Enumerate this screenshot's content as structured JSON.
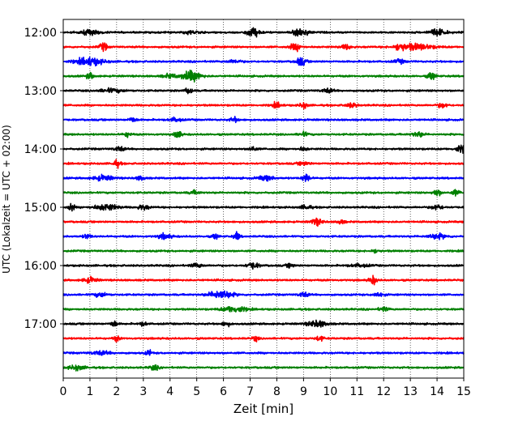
{
  "chart_data": {
    "type": "line",
    "xlabel": "Zeit  [min]",
    "ylabel": "UTC (Lokalzeit = UTC + 02:00)",
    "xlim": [
      0,
      15
    ],
    "x_ticks": [
      "0",
      "1",
      "2",
      "3",
      "4",
      "5",
      "6",
      "7",
      "8",
      "9",
      "10",
      "11",
      "12",
      "13",
      "14",
      "15"
    ],
    "y_ticks": [
      {
        "label": "12:00",
        "trace": 0
      },
      {
        "label": "13:00",
        "trace": 4
      },
      {
        "label": "14:00",
        "trace": 8
      },
      {
        "label": "15:00",
        "trace": 12
      },
      {
        "label": "16:00",
        "trace": 16
      },
      {
        "label": "17:00",
        "trace": 20
      }
    ],
    "grid": "vertical dotted at every minute",
    "trace_interval_min": 15,
    "color_cycle": [
      "#000000",
      "#ff0000",
      "#0000ff",
      "#008000"
    ],
    "traces": [
      {
        "start": "12:00",
        "color": "#000000",
        "events": [
          [
            1.0,
            0.5,
            1.2
          ],
          [
            4.8,
            0.4,
            0.8
          ],
          [
            7.1,
            0.35,
            2.2
          ],
          [
            8.9,
            0.4,
            2.0
          ],
          [
            14.0,
            0.45,
            1.6
          ]
        ]
      },
      {
        "start": "12:15",
        "color": "#ff0000",
        "events": [
          [
            1.5,
            0.2,
            2.0
          ],
          [
            8.7,
            0.3,
            1.6
          ],
          [
            10.6,
            0.3,
            1.1
          ],
          [
            12.6,
            0.2,
            1.6
          ],
          [
            13.2,
            0.9,
            1.6
          ]
        ]
      },
      {
        "start": "12:30",
        "color": "#0000ff",
        "events": [
          [
            1.0,
            0.7,
            2.0
          ],
          [
            6.4,
            0.4,
            0.7
          ],
          [
            8.9,
            0.25,
            2.0
          ],
          [
            12.6,
            0.3,
            0.9
          ]
        ]
      },
      {
        "start": "12:45",
        "color": "#008000",
        "events": [
          [
            1.0,
            0.2,
            1.4
          ],
          [
            4.0,
            0.4,
            0.9
          ],
          [
            4.8,
            0.5,
            2.6
          ],
          [
            13.8,
            0.2,
            2.0
          ]
        ]
      },
      {
        "start": "13:00",
        "color": "#000000",
        "events": [
          [
            1.8,
            0.6,
            0.9
          ],
          [
            4.7,
            0.2,
            1.4
          ],
          [
            9.9,
            0.3,
            1.0
          ]
        ]
      },
      {
        "start": "13:15",
        "color": "#ff0000",
        "events": [
          [
            8.0,
            0.25,
            1.2
          ],
          [
            9.0,
            0.2,
            1.4
          ],
          [
            10.8,
            0.3,
            1.0
          ],
          [
            14.2,
            0.25,
            1.2
          ]
        ]
      },
      {
        "start": "13:30",
        "color": "#0000ff",
        "events": [
          [
            2.6,
            0.2,
            1.3
          ],
          [
            4.2,
            0.3,
            1.0
          ],
          [
            6.4,
            0.2,
            1.2
          ]
        ]
      },
      {
        "start": "13:45",
        "color": "#008000",
        "events": [
          [
            2.4,
            0.2,
            1.2
          ],
          [
            4.3,
            0.15,
            2.5
          ],
          [
            9.0,
            0.25,
            1.0
          ],
          [
            13.3,
            0.3,
            1.2
          ]
        ]
      },
      {
        "start": "14:00",
        "color": "#000000",
        "events": [
          [
            2.1,
            0.25,
            1.2
          ],
          [
            7.1,
            0.2,
            1.2
          ],
          [
            9.0,
            0.2,
            1.0
          ],
          [
            14.9,
            0.3,
            1.6
          ]
        ]
      },
      {
        "start": "14:15",
        "color": "#ff0000",
        "events": [
          [
            2.0,
            0.2,
            1.6
          ],
          [
            9.0,
            0.3,
            0.8
          ]
        ]
      },
      {
        "start": "14:30",
        "color": "#0000ff",
        "events": [
          [
            1.5,
            0.5,
            1.3
          ],
          [
            2.9,
            0.2,
            1.1
          ],
          [
            7.6,
            0.4,
            1.2
          ],
          [
            9.1,
            0.2,
            2.2
          ]
        ]
      },
      {
        "start": "14:45",
        "color": "#008000",
        "events": [
          [
            4.9,
            0.25,
            0.9
          ],
          [
            14.0,
            0.2,
            1.8
          ],
          [
            14.7,
            0.2,
            1.4
          ]
        ]
      },
      {
        "start": "15:00",
        "color": "#000000",
        "events": [
          [
            0.3,
            0.15,
            2.2
          ],
          [
            1.6,
            0.6,
            1.6
          ],
          [
            3.0,
            0.3,
            1.2
          ],
          [
            9.1,
            0.25,
            1.2
          ],
          [
            14.0,
            0.3,
            1.3
          ]
        ]
      },
      {
        "start": "15:15",
        "color": "#ff0000",
        "events": [
          [
            9.5,
            0.3,
            1.6
          ],
          [
            10.4,
            0.2,
            1.0
          ]
        ]
      },
      {
        "start": "15:30",
        "color": "#0000ff",
        "events": [
          [
            0.9,
            0.2,
            1.2
          ],
          [
            3.8,
            0.35,
            1.2
          ],
          [
            5.7,
            0.15,
            1.5
          ],
          [
            6.5,
            0.15,
            2.0
          ],
          [
            14.0,
            0.5,
            1.2
          ]
        ]
      },
      {
        "start": "15:45",
        "color": "#008000",
        "events": [
          [
            11.7,
            0.2,
            0.8
          ]
        ]
      },
      {
        "start": "16:00",
        "color": "#000000",
        "events": [
          [
            5.0,
            0.3,
            1.0
          ],
          [
            7.1,
            0.3,
            1.6
          ],
          [
            8.5,
            0.2,
            1.0
          ],
          [
            11.1,
            0.5,
            0.7
          ]
        ]
      },
      {
        "start": "16:15",
        "color": "#ff0000",
        "events": [
          [
            1.0,
            0.35,
            1.3
          ],
          [
            11.6,
            0.2,
            2.0
          ]
        ]
      },
      {
        "start": "16:30",
        "color": "#0000ff",
        "events": [
          [
            1.4,
            0.35,
            1.0
          ],
          [
            5.9,
            0.6,
            2.2
          ],
          [
            9.0,
            0.25,
            1.2
          ],
          [
            11.8,
            0.25,
            1.2
          ]
        ]
      },
      {
        "start": "16:45",
        "color": "#008000",
        "events": [
          [
            6.4,
            0.6,
            1.6
          ],
          [
            12.0,
            0.25,
            1.0
          ]
        ]
      },
      {
        "start": "17:00",
        "color": "#000000",
        "events": [
          [
            1.9,
            0.15,
            1.8
          ],
          [
            3.0,
            0.2,
            0.9
          ],
          [
            6.1,
            0.2,
            1.2
          ],
          [
            9.5,
            0.5,
            1.6
          ]
        ]
      },
      {
        "start": "17:15",
        "color": "#ff0000",
        "events": [
          [
            2.0,
            0.15,
            1.4
          ],
          [
            7.2,
            0.15,
            1.3
          ],
          [
            9.6,
            0.2,
            1.2
          ]
        ]
      },
      {
        "start": "17:30",
        "color": "#0000ff",
        "events": [
          [
            1.4,
            0.5,
            0.9
          ],
          [
            3.2,
            0.15,
            1.4
          ]
        ]
      },
      {
        "start": "17:45",
        "color": "#008000",
        "events": [
          [
            0.5,
            0.4,
            1.2
          ],
          [
            3.4,
            0.2,
            1.4
          ]
        ]
      }
    ]
  }
}
